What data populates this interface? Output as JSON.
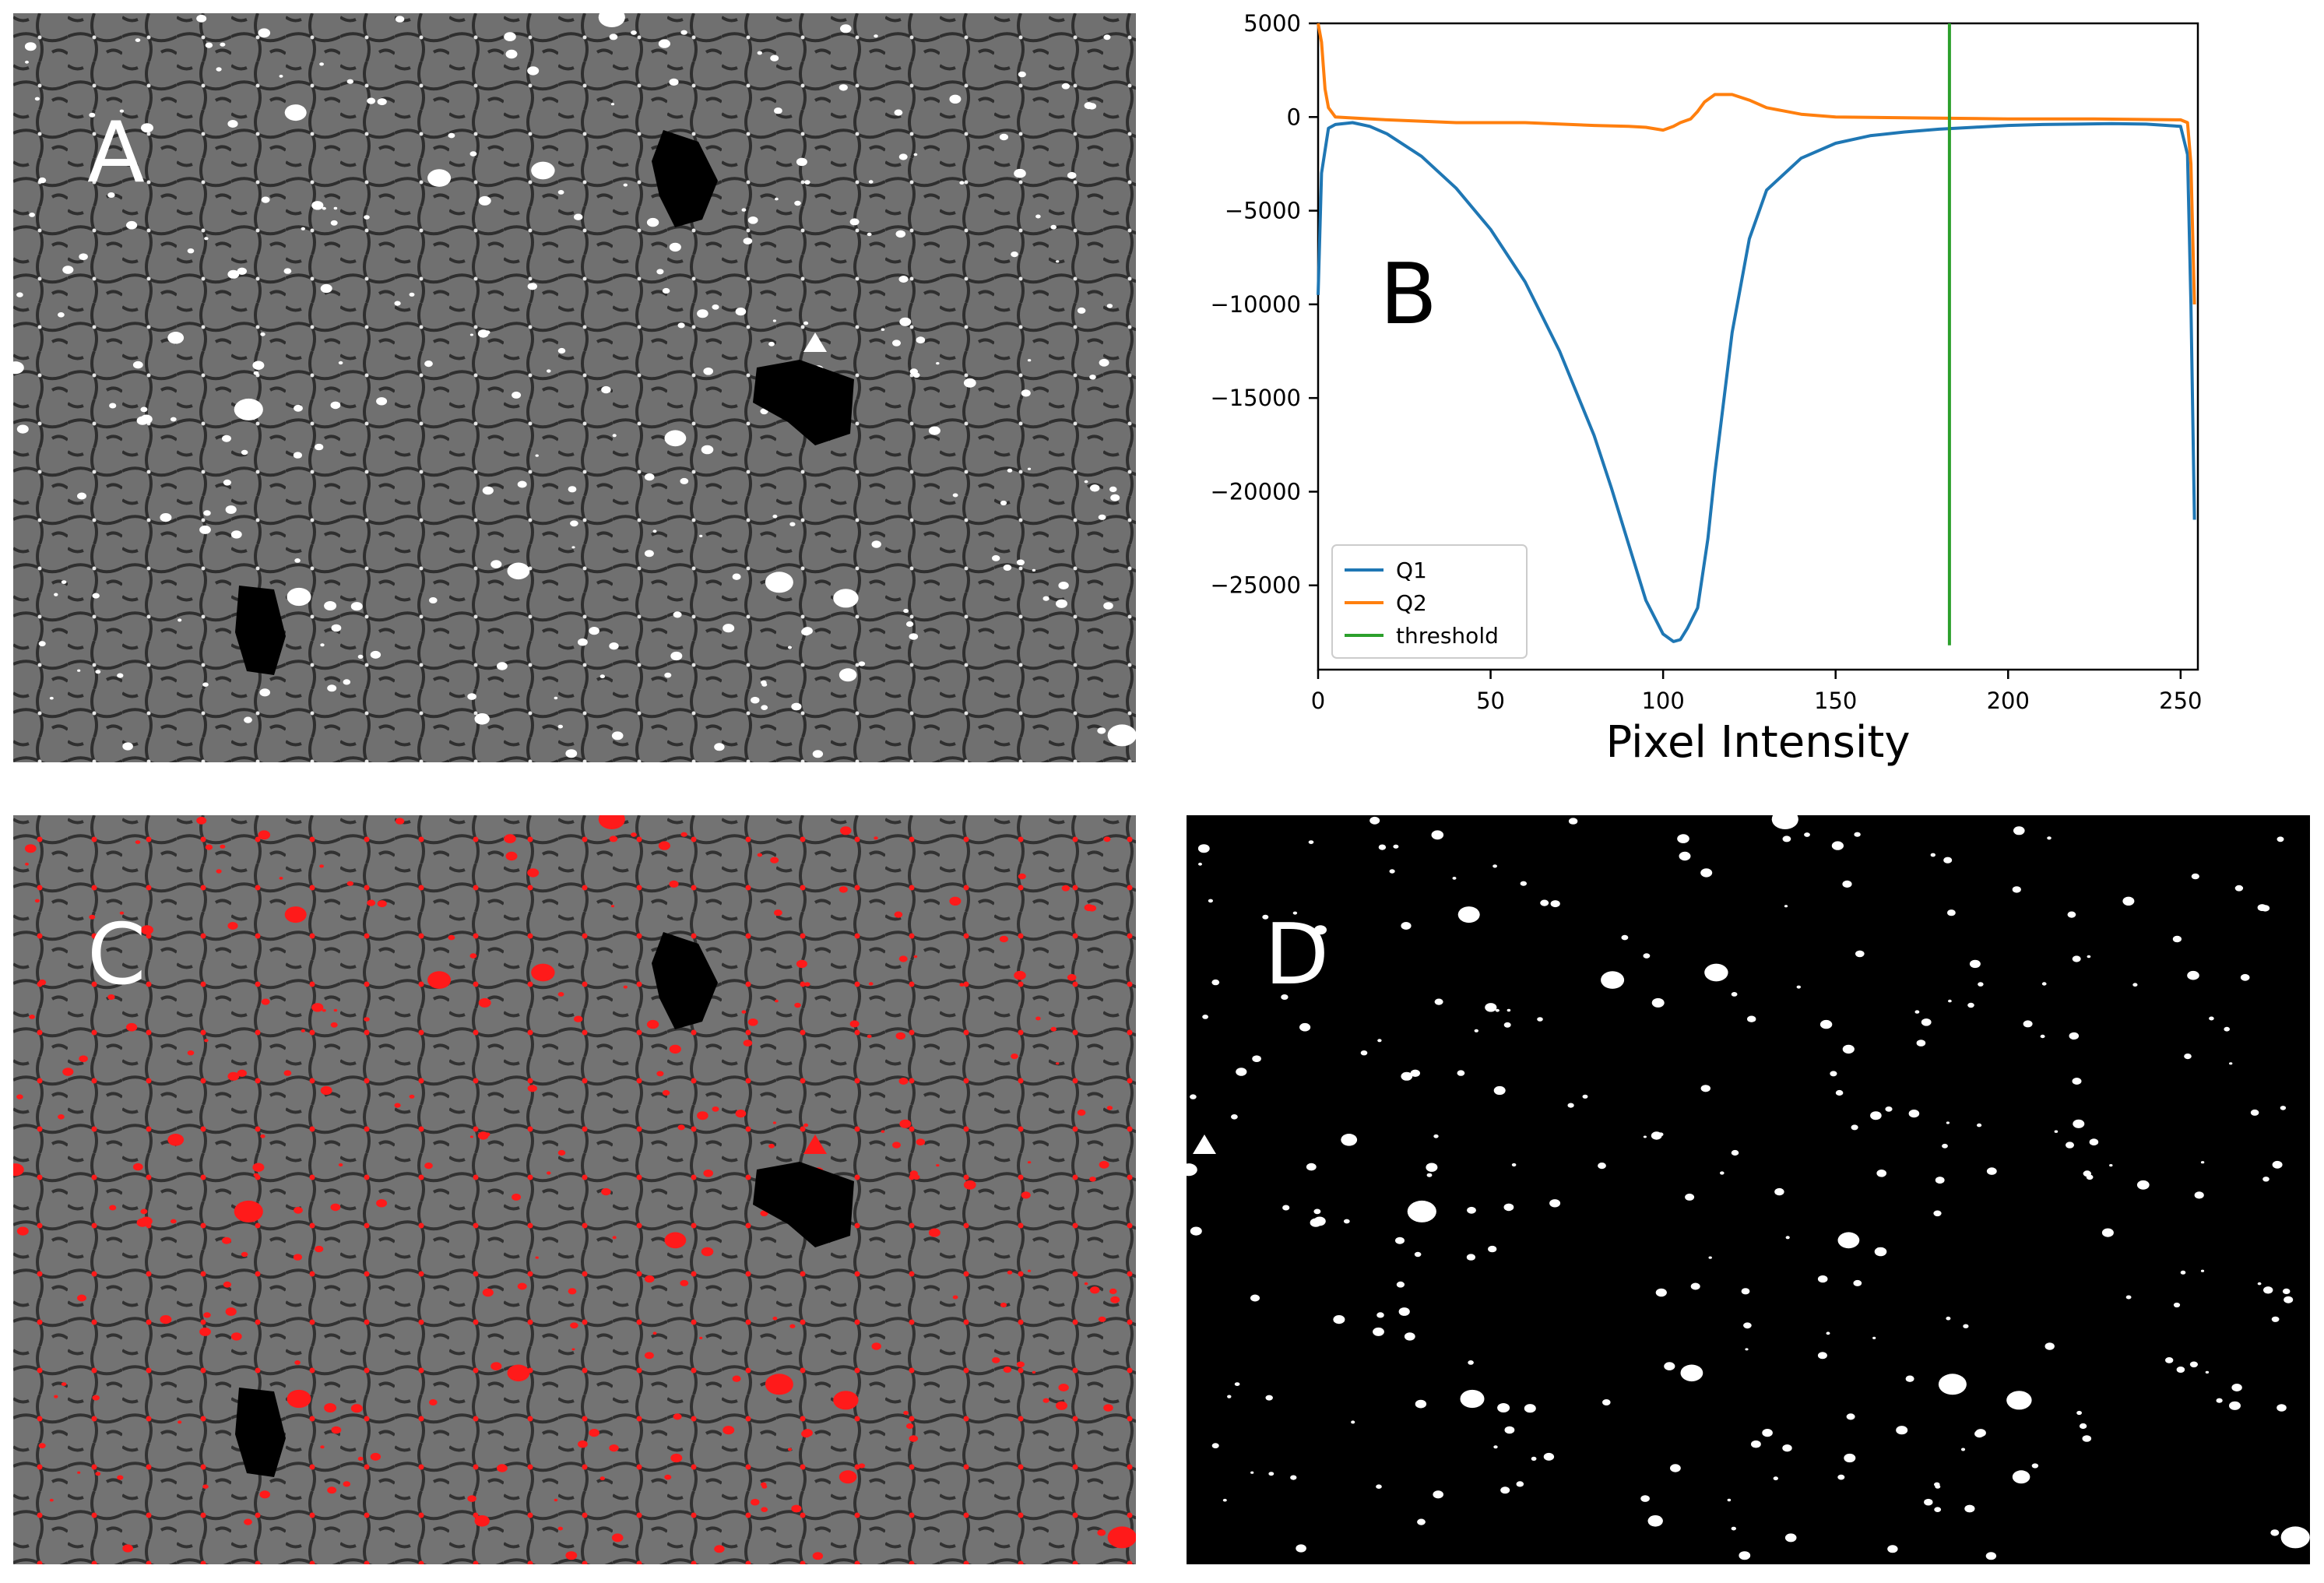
{
  "panels": {
    "a": {
      "letter": "A"
    },
    "b": {
      "letter": "B"
    },
    "c": {
      "letter": "C"
    },
    "d": {
      "letter": "D"
    }
  },
  "colors": {
    "q1": "#1f77b4",
    "q2": "#ff7f0e",
    "threshold": "#2ca02c",
    "overlay": "#ff1a1a",
    "micrograph_base": "#6e6e6e",
    "cell_dark": "#3a3a3a",
    "mask_bg": "#000000",
    "mask_fg": "#ffffff"
  },
  "chart_data": {
    "type": "line",
    "title": "",
    "xlabel": "Pixel Intensity",
    "ylabel": "",
    "xlim": [
      0,
      255
    ],
    "ylim": [
      -29500,
      5000
    ],
    "xticks": [
      0,
      50,
      100,
      150,
      200,
      250
    ],
    "yticks": [
      5000,
      0,
      -5000,
      -10000,
      -15000,
      -20000,
      -25000
    ],
    "ytick_labels": [
      "5000",
      "0",
      "−5000",
      "−10000",
      "−15000",
      "−20000",
      "−25000"
    ],
    "grid": false,
    "legend_position": "lower-left",
    "series": [
      {
        "name": "Q1",
        "x": [
          0,
          1,
          3,
          5,
          10,
          15,
          20,
          30,
          40,
          50,
          60,
          70,
          80,
          85,
          90,
          95,
          100,
          103,
          105,
          107,
          110,
          113,
          115,
          120,
          125,
          130,
          140,
          150,
          160,
          170,
          180,
          190,
          200,
          210,
          220,
          230,
          240,
          250,
          252,
          253,
          254
        ],
        "y": [
          -9500,
          -3000,
          -600,
          -400,
          -300,
          -500,
          -900,
          -2100,
          -3800,
          -6000,
          -8800,
          -12500,
          -17000,
          -19800,
          -22800,
          -25800,
          -27600,
          -28000,
          -27900,
          -27300,
          -26200,
          -22500,
          -19000,
          -11500,
          -6500,
          -3900,
          -2200,
          -1400,
          -1000,
          -800,
          -650,
          -550,
          -450,
          -400,
          -380,
          -350,
          -380,
          -500,
          -2000,
          -10000,
          -21500
        ]
      },
      {
        "name": "Q2",
        "x": [
          0,
          1,
          2,
          3,
          5,
          10,
          20,
          40,
          60,
          80,
          90,
          95,
          100,
          103,
          105,
          108,
          110,
          112,
          115,
          120,
          125,
          130,
          140,
          150,
          175,
          200,
          225,
          250,
          252,
          253,
          254
        ],
        "y": [
          5000,
          4000,
          1500,
          500,
          0,
          -50,
          -150,
          -300,
          -300,
          -450,
          -500,
          -550,
          -700,
          -500,
          -300,
          -100,
          300,
          800,
          1200,
          1200,
          900,
          500,
          150,
          0,
          -50,
          -100,
          -100,
          -150,
          -300,
          -2500,
          -10000
        ]
      },
      {
        "name": "threshold",
        "x": [
          183,
          183
        ],
        "y": [
          -28200,
          5000
        ]
      }
    ]
  }
}
